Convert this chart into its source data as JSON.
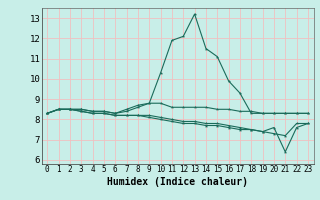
{
  "xlabel": "Humidex (Indice chaleur)",
  "ylabel": "",
  "xlim": [
    -0.5,
    23.5
  ],
  "ylim": [
    5.8,
    13.5
  ],
  "yticks": [
    6,
    7,
    8,
    9,
    10,
    11,
    12,
    13
  ],
  "xticks": [
    0,
    1,
    2,
    3,
    4,
    5,
    6,
    7,
    8,
    9,
    10,
    11,
    12,
    13,
    14,
    15,
    16,
    17,
    18,
    19,
    20,
    21,
    22,
    23
  ],
  "bg_color": "#c8eee8",
  "grid_color": "#f0c0c0",
  "line_color": "#1a6b5a",
  "series": [
    [
      8.3,
      8.5,
      8.5,
      8.5,
      8.4,
      8.4,
      8.3,
      8.5,
      8.7,
      8.8,
      10.3,
      11.9,
      12.1,
      13.2,
      11.5,
      11.1,
      9.9,
      9.3,
      8.3,
      8.3,
      8.3,
      8.3,
      8.3,
      8.3
    ],
    [
      8.3,
      8.5,
      8.5,
      8.5,
      8.4,
      8.4,
      8.3,
      8.4,
      8.6,
      8.8,
      8.8,
      8.6,
      8.6,
      8.6,
      8.6,
      8.5,
      8.5,
      8.4,
      8.4,
      8.3,
      8.3,
      8.3,
      8.3,
      8.3
    ],
    [
      8.3,
      8.5,
      8.5,
      8.4,
      8.3,
      8.3,
      8.2,
      8.2,
      8.2,
      8.2,
      8.1,
      8.0,
      7.9,
      7.9,
      7.8,
      7.8,
      7.7,
      7.6,
      7.5,
      7.4,
      7.6,
      6.4,
      7.6,
      7.8
    ],
    [
      8.3,
      8.5,
      8.5,
      8.4,
      8.3,
      8.3,
      8.2,
      8.2,
      8.2,
      8.1,
      8.0,
      7.9,
      7.8,
      7.8,
      7.7,
      7.7,
      7.6,
      7.5,
      7.5,
      7.4,
      7.3,
      7.2,
      7.8,
      7.8
    ]
  ]
}
